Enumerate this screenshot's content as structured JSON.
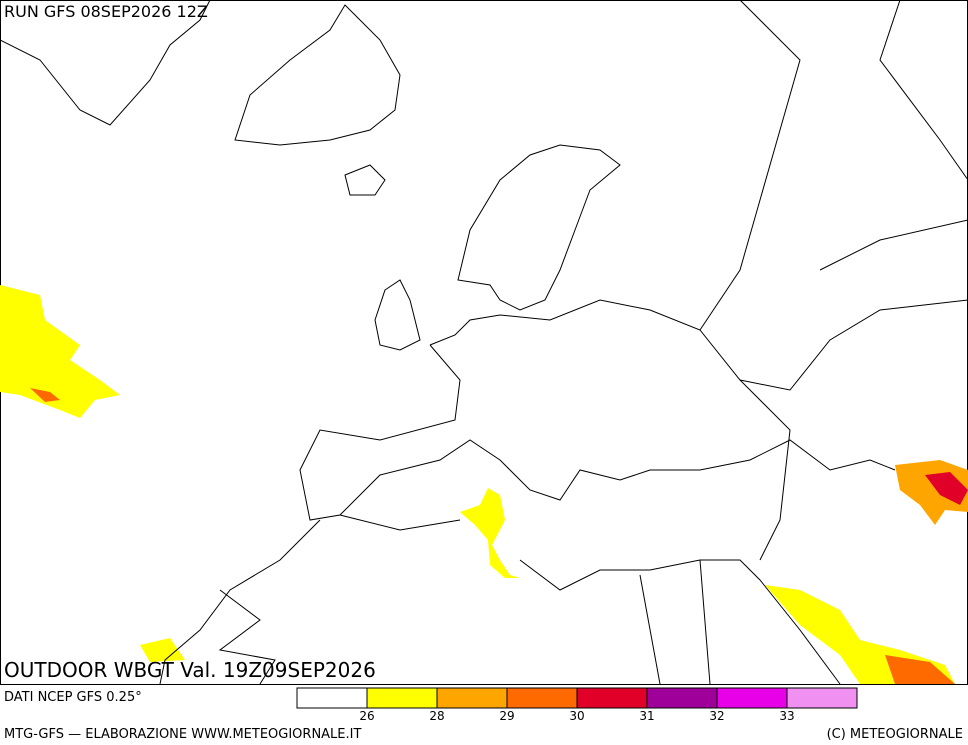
{
  "header": {
    "run": "RUN GFS 08SEP2026 12Z"
  },
  "map": {
    "title": "OUTDOOR WBGT Val. 19Z09SEP2026"
  },
  "footer": {
    "source": "DATI NCEP GFS 0.25°",
    "credit": "MTG-GFS — ELABORAZIONE WWW.METEOGIORNALE.IT",
    "copyright": "(C) METEOGIORNALE"
  },
  "legend": {
    "colors": [
      "#ffffff",
      "#ffff00",
      "#ffa500",
      "#ff6a00",
      "#e00028",
      "#a0009a",
      "#e800e8",
      "#f090f0"
    ],
    "ticks": [
      26,
      28,
      29,
      30,
      31,
      32,
      33
    ]
  }
}
